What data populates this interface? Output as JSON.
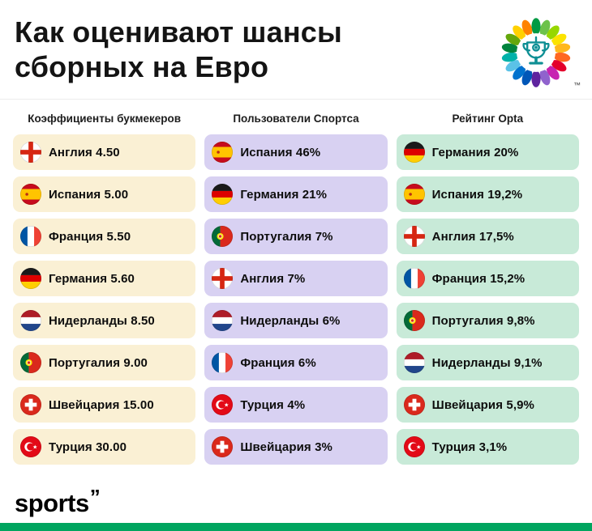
{
  "header": {
    "title_line1": "Как оценивают шансы",
    "title_line2": "сборных на Евро",
    "trademark": "™"
  },
  "columns": [
    {
      "header": "Коэффициенты букмекеров",
      "cell_bg": "#FAF0D4",
      "rows": [
        {
          "flag": "england",
          "team": "Англия",
          "value": "4.50"
        },
        {
          "flag": "spain",
          "team": "Испания",
          "value": "5.00"
        },
        {
          "flag": "france",
          "team": "Франция",
          "value": "5.50"
        },
        {
          "flag": "germany",
          "team": "Германия",
          "value": "5.60"
        },
        {
          "flag": "netherlands",
          "team": "Нидерланды",
          "value": "8.50"
        },
        {
          "flag": "portugal",
          "team": "Португалия",
          "value": "9.00"
        },
        {
          "flag": "switzerland",
          "team": "Швейцария",
          "value": "15.00"
        },
        {
          "flag": "turkey",
          "team": "Турция",
          "value": "30.00"
        }
      ]
    },
    {
      "header": "Пользователи Спортса",
      "cell_bg": "#D8D1F2",
      "rows": [
        {
          "flag": "spain",
          "team": "Испания",
          "value": "46%"
        },
        {
          "flag": "germany",
          "team": "Германия",
          "value": "21%"
        },
        {
          "flag": "portugal",
          "team": "Португалия",
          "value": "7%"
        },
        {
          "flag": "england",
          "team": "Англия",
          "value": "7%"
        },
        {
          "flag": "netherlands",
          "team": "Нидерланды",
          "value": "6%"
        },
        {
          "flag": "france",
          "team": "Франция",
          "value": "6%"
        },
        {
          "flag": "turkey",
          "team": "Турция",
          "value": "4%"
        },
        {
          "flag": "switzerland",
          "team": "Швейцария",
          "value": "3%"
        }
      ]
    },
    {
      "header": "Рейтинг Opta",
      "cell_bg": "#C8EAD8",
      "rows": [
        {
          "flag": "germany",
          "team": "Германия",
          "value": "20%"
        },
        {
          "flag": "spain",
          "team": "Испания",
          "value": "19,2%"
        },
        {
          "flag": "england",
          "team": "Англия",
          "value": "17,5%"
        },
        {
          "flag": "france",
          "team": "Франция",
          "value": "15,2%"
        },
        {
          "flag": "portugal",
          "team": "Португалия",
          "value": "9,8%"
        },
        {
          "flag": "netherlands",
          "team": "Нидерланды",
          "value": "9,1%"
        },
        {
          "flag": "switzerland",
          "team": "Швейцария",
          "value": "5,9%"
        },
        {
          "flag": "turkey",
          "team": "Турция",
          "value": "3,1%"
        }
      ]
    }
  ],
  "footer": {
    "brand_text": "sports",
    "brand_mark": "”"
  },
  "colors": {
    "accent_bar": "#00A55F"
  },
  "chart_data": {
    "type": "table",
    "title": "Как оценивают шансы сборных на Евро",
    "columns": [
      {
        "header": "Коэффициенты букмекеров",
        "unit": "odds",
        "rows": [
          {
            "team": "Англия",
            "value": 4.5
          },
          {
            "team": "Испания",
            "value": 5.0
          },
          {
            "team": "Франция",
            "value": 5.5
          },
          {
            "team": "Германия",
            "value": 5.6
          },
          {
            "team": "Нидерланды",
            "value": 8.5
          },
          {
            "team": "Португалия",
            "value": 9.0
          },
          {
            "team": "Швейцария",
            "value": 15.0
          },
          {
            "team": "Турция",
            "value": 30.0
          }
        ]
      },
      {
        "header": "Пользователи Спортса",
        "unit": "%",
        "rows": [
          {
            "team": "Испания",
            "value": 46
          },
          {
            "team": "Германия",
            "value": 21
          },
          {
            "team": "Португалия",
            "value": 7
          },
          {
            "team": "Англия",
            "value": 7
          },
          {
            "team": "Нидерланды",
            "value": 6
          },
          {
            "team": "Франция",
            "value": 6
          },
          {
            "team": "Турция",
            "value": 4
          },
          {
            "team": "Швейцария",
            "value": 3
          }
        ]
      },
      {
        "header": "Рейтинг Opta",
        "unit": "%",
        "rows": [
          {
            "team": "Германия",
            "value": 20
          },
          {
            "team": "Испания",
            "value": 19.2
          },
          {
            "team": "Англия",
            "value": 17.5
          },
          {
            "team": "Франция",
            "value": 15.2
          },
          {
            "team": "Португалия",
            "value": 9.8
          },
          {
            "team": "Нидерланды",
            "value": 9.1
          },
          {
            "team": "Швейцария",
            "value": 5.9
          },
          {
            "team": "Турция",
            "value": 3.1
          }
        ]
      }
    ]
  }
}
